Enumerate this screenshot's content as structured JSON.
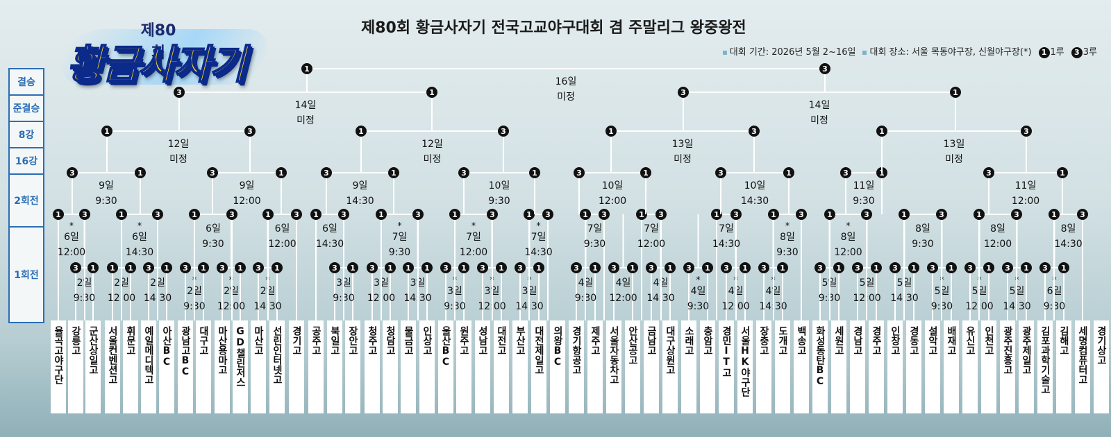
{
  "logo": {
    "edition": "제80회",
    "name": "황금사자기"
  },
  "title": "제80회 황금사자기 전국고교야구대회 겸 주말리그 왕중왕전",
  "meta": {
    "period": "대회 기간: 2026년 5월 2~16일",
    "venue": "대회 장소: 서울 목동야구장, 신월야구장(*)",
    "legend_first_num": "1",
    "legend_first": "1루",
    "legend_third_num": "3",
    "legend_third": "3루"
  },
  "rounds": [
    "결승",
    "준결승",
    "8강",
    "16강",
    "2회전",
    "1회전"
  ],
  "teams": [
    "율곡고야구단",
    "강릉고",
    "군산상일고",
    "서울컨벤션고",
    "휘문고",
    "예일메디텍고",
    "아산BC",
    "광남고BC",
    "대구고",
    "마산용마고",
    "GD챌린저스",
    "마산고",
    "선린인터넷고",
    "경기고",
    "공주고",
    "북일고",
    "장안고",
    "청주고",
    "청담고",
    "물금고",
    "인상고",
    "울산BC",
    "원주고",
    "성남고",
    "대전고",
    "부산고",
    "대전제일고",
    "의왕BC",
    "경기항공고",
    "제주고",
    "서울자동차고",
    "안산공고",
    "금남고",
    "대구상원고",
    "소래고",
    "충암고",
    "경민IT고",
    "서울HK야구단",
    "장충고",
    "도개고",
    "백송고",
    "화성동탄BC",
    "세원고",
    "경남고",
    "경주고",
    "인창고",
    "경동고",
    "설악고",
    "배재고",
    "유신고",
    "인천고",
    "광주진흥고",
    "광주제일고",
    "김포과학기술고",
    "김해고",
    "세명컴퓨터고",
    "경기상고"
  ],
  "matches": [
    {
      "day": "2일",
      "time": "9:30",
      "star": false
    },
    {
      "day": "2일",
      "time": "12:00",
      "star": false
    },
    {
      "day": "2일",
      "time": "14:30",
      "star": false
    },
    {
      "day": "2일",
      "time": "9:30",
      "star": true
    },
    {
      "day": "2일",
      "time": "12:00",
      "star": true
    },
    {
      "day": "2일",
      "time": "14:30",
      "star": true
    },
    {
      "day": "3일",
      "time": "9:30",
      "star": false
    },
    {
      "day": "3일",
      "time": "12:00",
      "star": false
    },
    {
      "day": "3일",
      "time": "14:30",
      "star": false
    },
    {
      "day": "3일",
      "time": "9:30",
      "star": true
    },
    {
      "day": "3일",
      "time": "12:00",
      "star": true
    },
    {
      "day": "3일",
      "time": "14:30",
      "star": true
    },
    {
      "day": "4일",
      "time": "9:30",
      "star": false
    },
    {
      "day": "4일",
      "time": "12:00",
      "star": false
    },
    {
      "day": "4일",
      "time": "14:30",
      "star": false
    },
    {
      "day": "4일",
      "time": "9:30",
      "star": true
    },
    {
      "day": "4일",
      "time": "12:00",
      "star": true
    },
    {
      "day": "4일",
      "time": "14:30",
      "star": true
    },
    {
      "day": "5일",
      "time": "9:30",
      "star": false
    },
    {
      "day": "5일",
      "time": "12:00",
      "star": false
    },
    {
      "day": "5일",
      "time": "14:30",
      "star": false
    },
    {
      "day": "5일",
      "time": "9:30",
      "star": true
    },
    {
      "day": "5일",
      "time": "12:00",
      "star": true
    },
    {
      "day": "5일",
      "time": "14:30",
      "star": true
    },
    {
      "day": "6일",
      "time": "9:30",
      "star": true
    },
    {
      "day": "6일",
      "time": "12:00",
      "star": true
    },
    {
      "day": "6일",
      "time": "14:30",
      "star": true
    },
    {
      "day": "6일",
      "time": "9:30",
      "star": false
    },
    {
      "day": "6일",
      "time": "12:00",
      "star": false
    },
    {
      "day": "6일",
      "time": "14:30",
      "star": false
    },
    {
      "day": "7일",
      "time": "9:30",
      "star": true
    },
    {
      "day": "7일",
      "time": "12:00",
      "star": true
    },
    {
      "day": "7일",
      "time": "14:30",
      "star": true
    },
    {
      "day": "7일",
      "time": "9:30",
      "star": false
    },
    {
      "day": "7일",
      "time": "12:00",
      "star": false
    },
    {
      "day": "7일",
      "time": "14:30",
      "star": false
    },
    {
      "day": "8일",
      "time": "9:30",
      "star": true
    },
    {
      "day": "8일",
      "time": "12:00",
      "star": true
    },
    {
      "day": "8일",
      "time": "9:30",
      "star": false
    },
    {
      "day": "8일",
      "time": "12:00",
      "star": false
    },
    {
      "day": "8일",
      "time": "14:30",
      "star": false
    },
    {
      "day": "9일",
      "time": "9:30",
      "star": false
    },
    {
      "day": "9일",
      "time": "12:00",
      "star": false
    },
    {
      "day": "9일",
      "time": "14:30",
      "star": false
    },
    {
      "day": "10일",
      "time": "9:30",
      "star": false
    },
    {
      "day": "10일",
      "time": "12:00",
      "star": false
    },
    {
      "day": "10일",
      "time": "14:30",
      "star": false
    },
    {
      "day": "11일",
      "time": "9:30",
      "star": false
    },
    {
      "day": "11일",
      "time": "12:00",
      "star": false
    },
    {
      "day": "12일",
      "time": "미정",
      "star": false
    },
    {
      "day": "12일",
      "time": "미정",
      "star": false
    },
    {
      "day": "13일",
      "time": "미정",
      "star": false
    },
    {
      "day": "13일",
      "time": "미정",
      "star": false
    },
    {
      "day": "14일",
      "time": "미정",
      "star": false
    },
    {
      "day": "14일",
      "time": "미정",
      "star": false
    },
    {
      "day": "16일",
      "time": "미정",
      "star": false
    }
  ]
}
